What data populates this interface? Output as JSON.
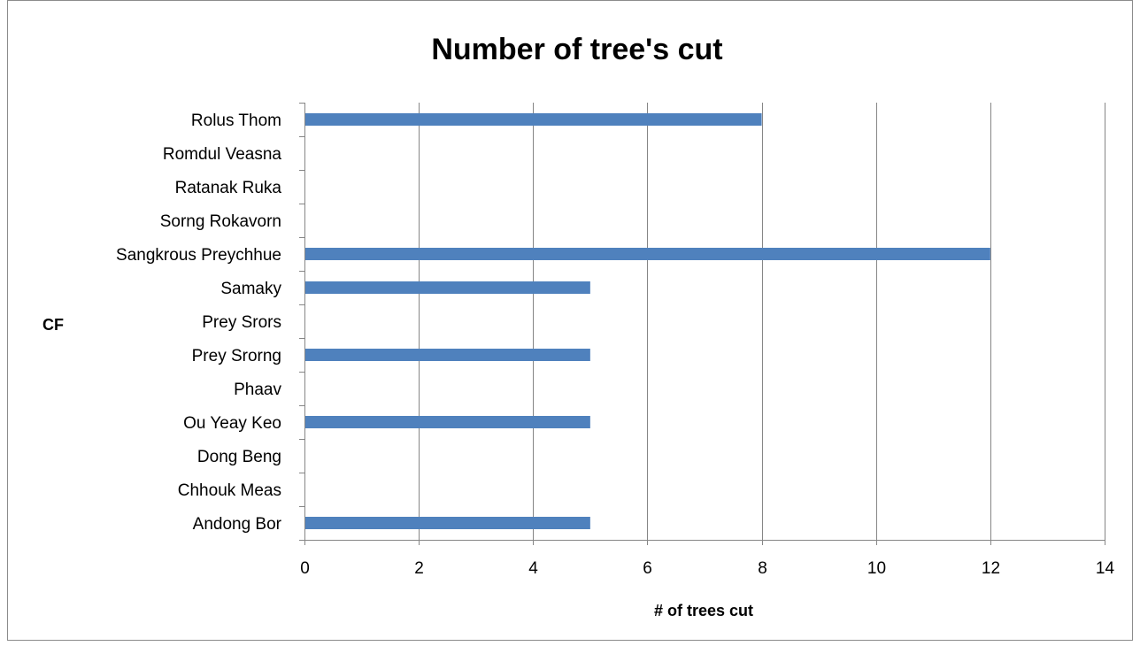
{
  "chart_data": {
    "type": "bar",
    "orientation": "horizontal",
    "title": "Number of tree's cut",
    "xlabel": "# of trees cut",
    "ylabel": "CF",
    "categories": [
      "Andong Bor",
      "Chhouk Meas",
      "Dong Beng",
      "Ou Yeay Keo",
      "Phaav",
      "Prey Srorng",
      "Prey Srors",
      "Samaky",
      "Sangkrous Preychhue",
      "Sorng Rokavorn",
      "Ratanak Ruka",
      "Romdul Veasna",
      "Rolus Thom"
    ],
    "values": [
      5,
      0,
      0,
      5,
      0,
      5,
      0,
      5,
      12,
      0,
      0,
      0,
      8
    ],
    "xlim": [
      0,
      14
    ],
    "xticks": [
      "0",
      "2",
      "4",
      "6",
      "8",
      "10",
      "12",
      "14"
    ],
    "grid": "vertical",
    "legend": "none",
    "colors": {
      "bar": "#4f81bd",
      "grid": "#868686",
      "axis": "#868686"
    }
  }
}
